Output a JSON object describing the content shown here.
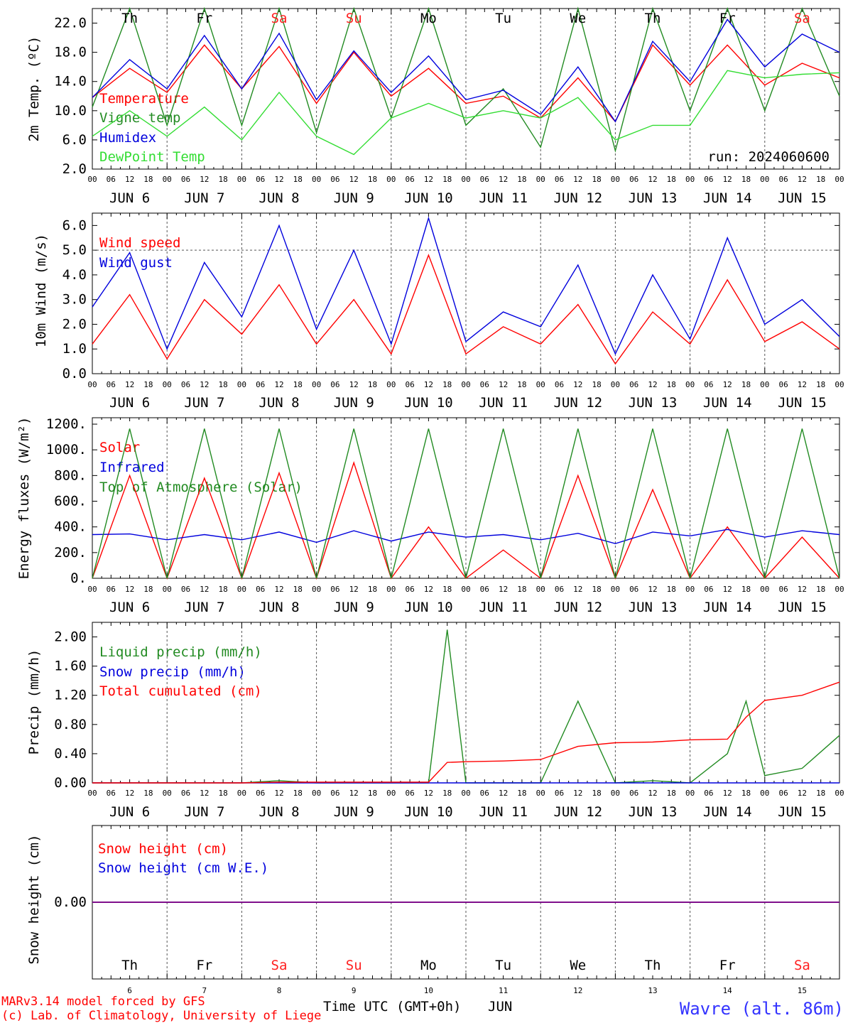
{
  "colors": {
    "temperature": "#ff0000",
    "vigne": "#228b22",
    "humidex": "#0000dd",
    "dewpoint": "#33dd33",
    "weekend": "#ff2020",
    "weekday": "#000000",
    "station": "#3333ff",
    "snow_line": "#800080"
  },
  "days": {
    "dates": [
      "JUN  6",
      "JUN  7",
      "JUN  8",
      "JUN  9",
      "JUN 10",
      "JUN 11",
      "JUN 12",
      "JUN 13",
      "JUN 14",
      "JUN 15"
    ],
    "short": [
      "6",
      "7",
      "8",
      "9",
      "10",
      "11",
      "12",
      "13",
      "14",
      "15"
    ],
    "weekdays": [
      "Th",
      "Fr",
      "Sa",
      "Su",
      "Mo",
      "Tu",
      "We",
      "Th",
      "Fr",
      "Sa"
    ],
    "weekend_index": [
      2,
      3,
      9
    ],
    "hour_ticks": [
      "00",
      "06",
      "12",
      "18"
    ],
    "last_tick": "00"
  },
  "run_label": "run: 2024060600",
  "xlabel": "Time UTC (GMT+0h)",
  "month_label": "JUN",
  "station": "Wavre (alt. 86m)",
  "credits": [
    "MARv3.14 model forced by GFS",
    "(c) Lab. of Climatology, University of Liege"
  ],
  "chart_data": [
    {
      "type": "line",
      "ylabel": "2m Temp. (ºC)",
      "ylim": [
        2.0,
        24.0
      ],
      "yticks": [
        "2.0",
        "6.0",
        "10.0",
        "14.0",
        "18.0",
        "22.0"
      ],
      "x_hours": [
        0,
        12,
        24,
        36,
        48,
        60,
        72,
        84,
        96,
        108,
        120,
        132,
        144,
        156,
        168,
        180,
        192,
        204,
        216,
        228,
        240
      ],
      "series": [
        {
          "name": "Temperature",
          "color": "#ff0000",
          "values": [
            11.8,
            15.8,
            12.5,
            19.0,
            13.0,
            18.8,
            11.0,
            18.0,
            12.0,
            15.8,
            11.0,
            12.0,
            9.0,
            14.5,
            8.5,
            19.0,
            13.5,
            19.0,
            13.5,
            16.5,
            14.5
          ]
        },
        {
          "name": "Vigne temp",
          "color": "#228b22",
          "values": [
            10.5,
            24.0,
            8.0,
            24.0,
            8.0,
            24.0,
            7.0,
            24.0,
            9.0,
            24.0,
            8.0,
            13.0,
            5.0,
            24.0,
            4.5,
            24.0,
            10.0,
            24.0,
            10.0,
            24.0,
            12.0
          ]
        },
        {
          "name": "Humidex",
          "color": "#0000dd",
          "values": [
            11.8,
            17.0,
            13.0,
            20.3,
            13.0,
            20.6,
            11.5,
            18.2,
            12.5,
            17.5,
            11.5,
            12.8,
            9.5,
            16.0,
            8.5,
            19.5,
            14.0,
            22.5,
            16.0,
            20.5,
            18.0
          ]
        },
        {
          "name": "DewPoint Temp",
          "color": "#33dd33",
          "values": [
            6.5,
            10.0,
            6.5,
            10.5,
            6.0,
            12.5,
            6.5,
            4.0,
            9.0,
            11.0,
            9.0,
            10.0,
            9.0,
            11.8,
            6.0,
            8.0,
            8.0,
            15.5,
            14.5,
            15.0,
            15.2
          ]
        }
      ]
    },
    {
      "type": "line",
      "ylabel": "10m Wind (m/s)",
      "ylim": [
        0.0,
        6.5
      ],
      "yticks": [
        "0.0",
        "1.0",
        "2.0",
        "3.0",
        "4.0",
        "5.0",
        "6.0"
      ],
      "reference_line": 5.0,
      "x_hours": [
        0,
        12,
        24,
        36,
        48,
        60,
        72,
        84,
        96,
        108,
        120,
        132,
        144,
        156,
        168,
        180,
        192,
        204,
        216,
        228,
        240
      ],
      "series": [
        {
          "name": "Wind speed",
          "color": "#ff0000",
          "values": [
            1.2,
            3.2,
            0.6,
            3.0,
            1.6,
            3.6,
            1.2,
            3.0,
            0.8,
            4.8,
            0.8,
            1.9,
            1.2,
            2.8,
            0.4,
            2.5,
            1.2,
            3.8,
            1.3,
            2.1,
            1.0
          ]
        },
        {
          "name": "Wind gust",
          "color": "#0000dd",
          "values": [
            2.7,
            4.9,
            1.0,
            4.5,
            2.3,
            6.0,
            1.8,
            5.0,
            1.2,
            6.3,
            1.3,
            2.5,
            1.9,
            4.4,
            0.8,
            4.0,
            1.4,
            5.5,
            2.0,
            3.0,
            1.5
          ]
        }
      ]
    },
    {
      "type": "line",
      "ylabel": "Energy fluxes (W/m²)",
      "ylim": [
        0,
        1250
      ],
      "yticks": [
        "0.",
        "200.",
        "400.",
        "600.",
        "800.",
        "1000.",
        "1200."
      ],
      "x_hours": [
        0,
        12,
        24,
        36,
        48,
        60,
        72,
        84,
        96,
        108,
        120,
        132,
        144,
        156,
        168,
        180,
        192,
        204,
        216,
        228,
        240
      ],
      "series": [
        {
          "name": "Solar",
          "color": "#ff0000",
          "values": [
            0,
            800,
            0,
            780,
            0,
            820,
            0,
            900,
            0,
            400,
            0,
            220,
            0,
            800,
            0,
            690,
            0,
            400,
            0,
            320,
            0
          ]
        },
        {
          "name": "Infrared",
          "color": "#0000dd",
          "values": [
            340,
            345,
            300,
            340,
            300,
            360,
            280,
            370,
            290,
            360,
            320,
            340,
            300,
            350,
            270,
            360,
            330,
            380,
            320,
            370,
            340
          ]
        },
        {
          "name": "Top of Atmosphere (Solar)",
          "color": "#228b22",
          "values": [
            0,
            1165,
            0,
            1165,
            0,
            1165,
            0,
            1165,
            0,
            1165,
            0,
            1165,
            0,
            1165,
            0,
            1165,
            0,
            1165,
            0,
            1165,
            0
          ]
        }
      ]
    },
    {
      "type": "line",
      "ylabel": "Precip (mm/h)",
      "ylim": [
        0.0,
        2.2
      ],
      "yticks": [
        "0.00",
        "0.40",
        "0.80",
        "1.20",
        "1.60",
        "2.00"
      ],
      "x_hours": [
        0,
        12,
        24,
        36,
        48,
        60,
        72,
        84,
        96,
        108,
        114,
        120,
        132,
        144,
        156,
        168,
        180,
        192,
        204,
        210,
        216,
        228,
        240
      ],
      "series": [
        {
          "name": "Liquid precip (mm/h)",
          "color": "#228b22",
          "values": [
            0,
            0,
            0,
            0,
            0,
            0.03,
            0,
            0,
            0,
            0,
            2.1,
            0,
            0,
            0,
            1.12,
            0,
            0.03,
            0,
            0.4,
            1.12,
            0.1,
            0.2,
            0.65
          ]
        },
        {
          "name": "Snow precip (mm/h)",
          "color": "#0000dd",
          "values": [
            0,
            0,
            0,
            0,
            0,
            0,
            0,
            0,
            0,
            0,
            0,
            0,
            0,
            0,
            0,
            0,
            0,
            0,
            0,
            0,
            0,
            0,
            0
          ]
        },
        {
          "name": "Total cumulated (cm)",
          "color": "#ff0000",
          "values": [
            0,
            0,
            0,
            0,
            0,
            0.01,
            0.01,
            0.01,
            0.01,
            0.01,
            0.28,
            0.29,
            0.3,
            0.32,
            0.5,
            0.55,
            0.56,
            0.59,
            0.6,
            0.9,
            1.13,
            1.2,
            1.38
          ]
        }
      ]
    },
    {
      "type": "line",
      "ylabel": "Snow height (cm)",
      "ylim": [
        -1.0,
        1.0
      ],
      "yticks": [
        "0.00"
      ],
      "x_hours": [
        0,
        240
      ],
      "series": [
        {
          "name": "Snow height (cm)",
          "color": "#ff0000",
          "values": [
            0,
            0
          ]
        },
        {
          "name": "Snow height (cm W.E.)",
          "color": "#0000dd",
          "values": [
            0,
            0
          ]
        }
      ]
    }
  ]
}
